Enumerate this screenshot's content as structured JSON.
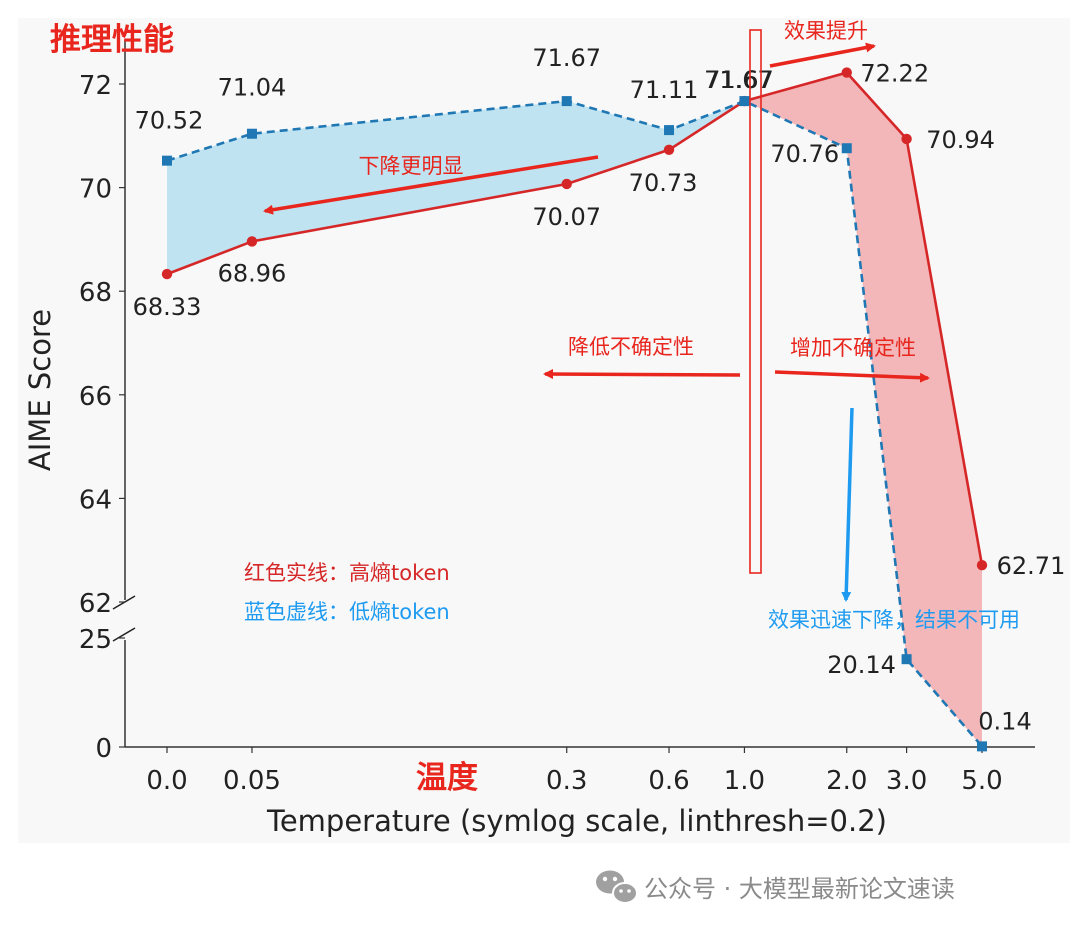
{
  "chart_data": {
    "type": "line",
    "title": "推理性能",
    "xlabel": "Temperature (symlog scale, linthresh=0.2)",
    "xlabel_cn": "温度",
    "ylabel": "AIME Score",
    "x_scale": "symlog",
    "linthresh": 0.2,
    "x": [
      0.0,
      0.05,
      0.3,
      0.6,
      1.0,
      2.0,
      3.0,
      5.0
    ],
    "x_tick_labels": [
      "0.0",
      "0.05",
      "0.3",
      "0.6",
      "1.0",
      "2.0",
      "3.0",
      "5.0"
    ],
    "y_upper_ticks": [
      "62",
      "64",
      "66",
      "68",
      "70",
      "72"
    ],
    "y_lower_ticks": [
      "0",
      "25"
    ],
    "y_break": "broken axis between 25 and 62",
    "series": [
      {
        "name": "红色实线：高熵token",
        "color": "#d62728",
        "style": "solid",
        "marker": "circle",
        "values": [
          68.33,
          68.96,
          70.07,
          70.73,
          71.67,
          72.22,
          70.94,
          62.71
        ],
        "labels": [
          "68.33",
          "68.96",
          "70.07",
          "70.73",
          "71.67",
          "72.22",
          "70.94",
          "62.71"
        ]
      },
      {
        "name": "蓝色虚线：低熵token",
        "color": "#1f77b4",
        "style": "dashed",
        "marker": "square",
        "values": [
          70.52,
          71.04,
          71.67,
          71.11,
          71.67,
          70.76,
          20.14,
          0.14
        ],
        "labels": [
          "70.52",
          "71.04",
          "71.67",
          "71.11",
          "71.67",
          "70.76",
          "20.14",
          "0.14"
        ]
      }
    ],
    "annotations": {
      "drop_more": "下降更明显",
      "improve": "效果提升",
      "reduce_uncertainty": "降低不确定性",
      "increase_uncertainty": "增加不确定性",
      "collapse": "效果迅速下降，结果不可用"
    },
    "colors": {
      "red": "#d62728",
      "blue": "#1f77b4",
      "arrow_red": "#e8261e",
      "arrow_blue": "#1e9bf0",
      "fill_blue": "#bfe3f1",
      "fill_red": "#f3b7b9"
    },
    "grid": false
  },
  "watermark": {
    "text": "公众号 · 大模型最新论文速读",
    "icon": "wechat-icon"
  }
}
